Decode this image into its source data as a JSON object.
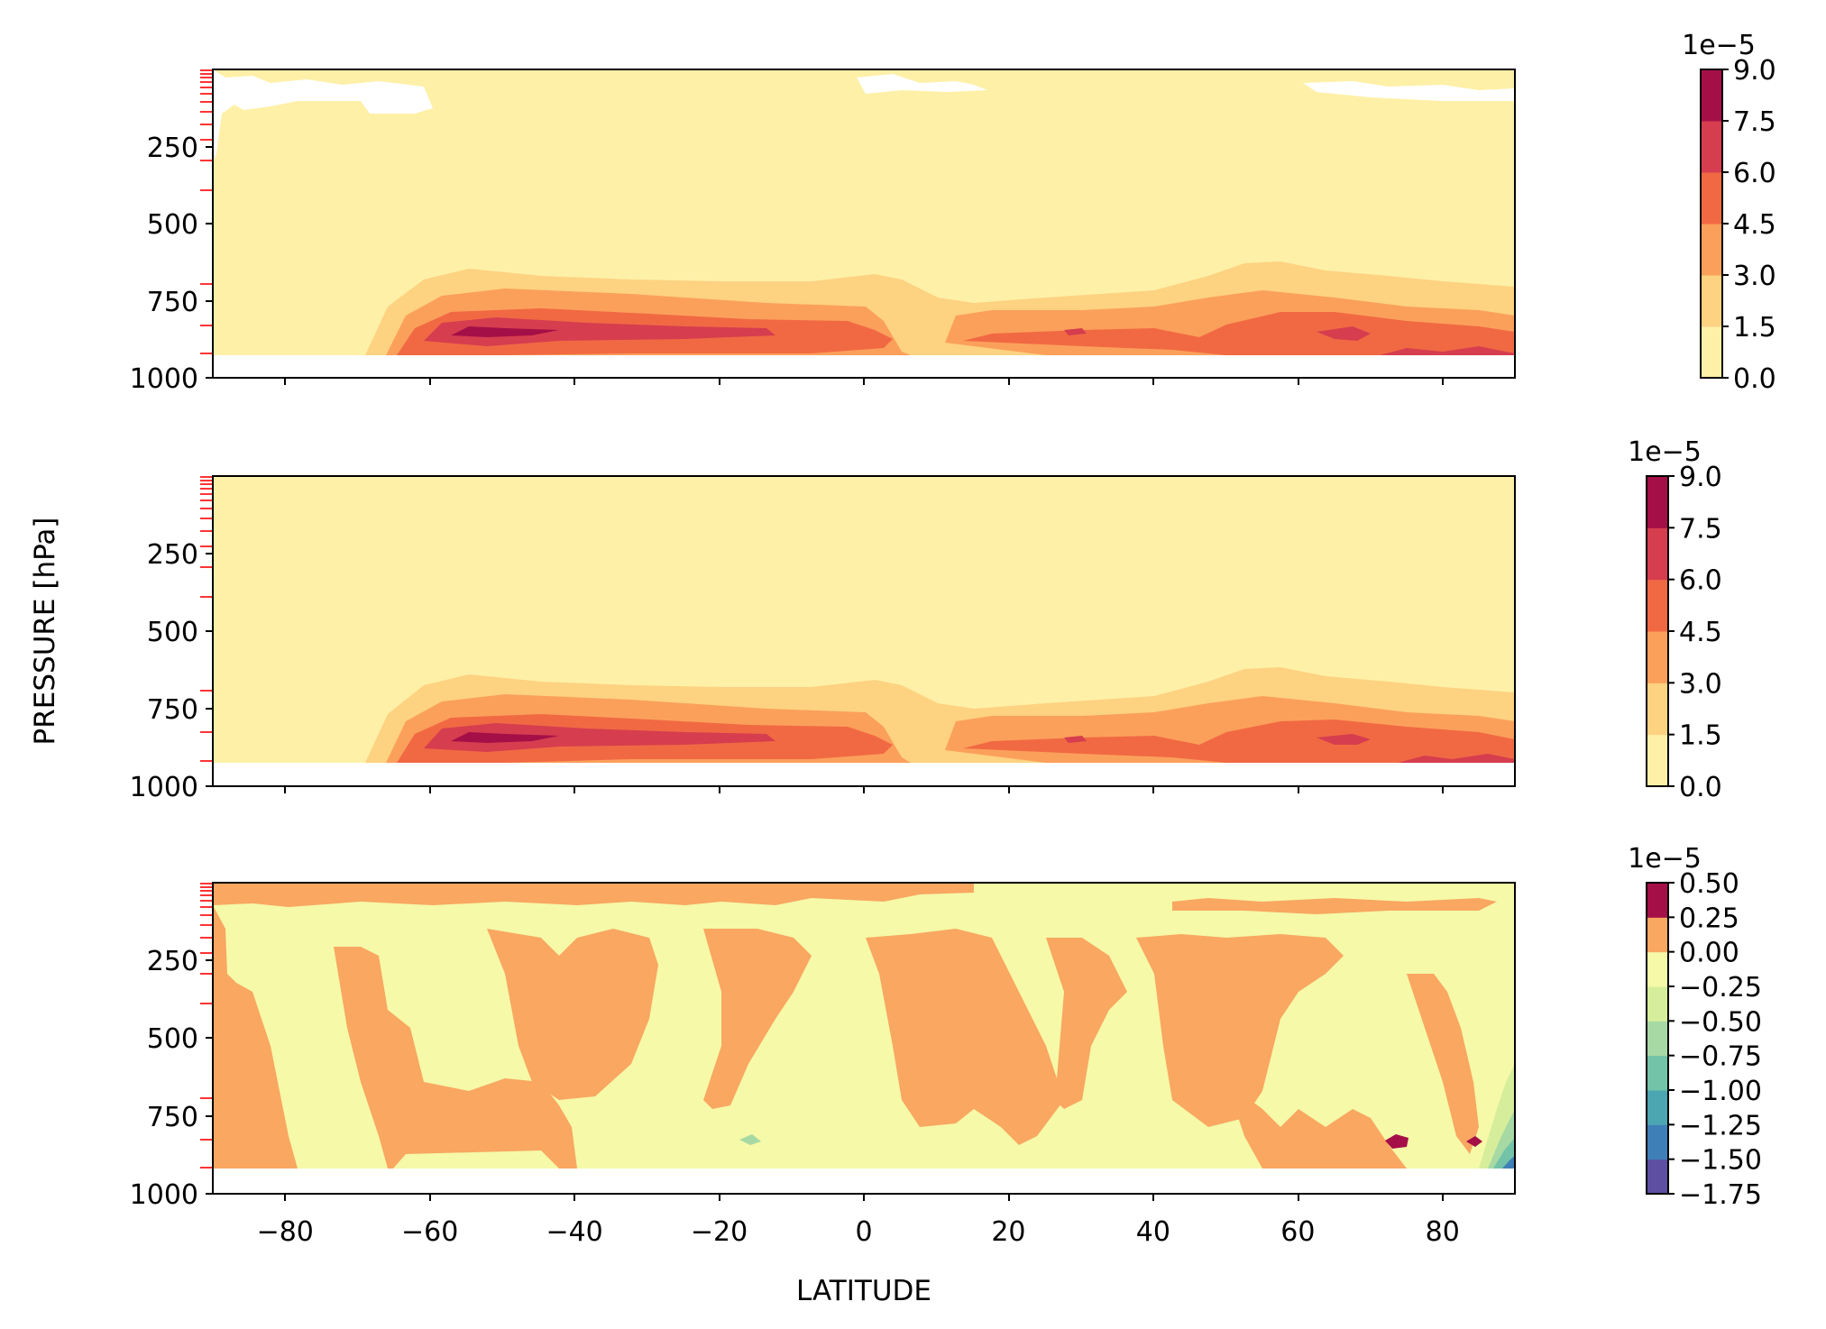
{
  "figure": {
    "ylabel": "PRESSURE [hPa]",
    "xlabel": "LATITUDE"
  },
  "chart_data": [
    {
      "type": "heatmap",
      "subtype": "filled-contour",
      "xlim": [
        -90,
        90
      ],
      "ylim": [
        1000,
        0
      ],
      "xticks": [
        -80,
        -60,
        -40,
        -20,
        0,
        20,
        40,
        60,
        80
      ],
      "yticks": [
        250,
        500,
        750,
        1000
      ],
      "x_ticklabels_visible": false,
      "colorbar": {
        "multiplier": "1e−5",
        "levels": [
          0.0,
          1.5,
          3.0,
          4.5,
          6.0,
          7.5,
          9.0
        ],
        "ticklabels": [
          "0.0",
          "1.5",
          "3.0",
          "4.5",
          "6.0",
          "7.5",
          "9.0"
        ],
        "colors": [
          "#fef0a7",
          "#fdd281",
          "#fba05b",
          "#f16943",
          "#d63d4f",
          "#a50f47"
        ]
      },
      "features": [
        {
          "level": 1,
          "lat_range": [
            -72,
            90
          ],
          "pressure_range": [
            680,
            920
          ]
        },
        {
          "level": 3,
          "lat_range": [
            -62,
            4
          ],
          "pressure_range": [
            790,
            900
          ]
        },
        {
          "level": 5,
          "lat_range": [
            -58,
            -20
          ],
          "pressure_range": [
            840,
            870
          ]
        },
        {
          "level": 3,
          "lat_range": [
            12,
            90
          ],
          "pressure_range": [
            800,
            910
          ]
        }
      ]
    },
    {
      "type": "heatmap",
      "subtype": "filled-contour",
      "xlim": [
        -90,
        90
      ],
      "ylim": [
        1000,
        0
      ],
      "xticks": [
        -80,
        -60,
        -40,
        -20,
        0,
        20,
        40,
        60,
        80
      ],
      "yticks": [
        250,
        500,
        750,
        1000
      ],
      "x_ticklabels_visible": false,
      "colorbar": {
        "multiplier": "1e−5",
        "levels": [
          0.0,
          1.5,
          3.0,
          4.5,
          6.0,
          7.5,
          9.0
        ],
        "ticklabels": [
          "0.0",
          "1.5",
          "3.0",
          "4.5",
          "6.0",
          "7.5",
          "9.0"
        ],
        "colors": [
          "#fef0a7",
          "#fdd281",
          "#fba05b",
          "#f16943",
          "#d63d4f",
          "#a50f47"
        ]
      },
      "features": [
        {
          "level": 1,
          "lat_range": [
            -72,
            90
          ],
          "pressure_range": [
            680,
            920
          ]
        },
        {
          "level": 3,
          "lat_range": [
            -62,
            4
          ],
          "pressure_range": [
            790,
            900
          ]
        },
        {
          "level": 5,
          "lat_range": [
            -58,
            -20
          ],
          "pressure_range": [
            840,
            870
          ]
        },
        {
          "level": 3,
          "lat_range": [
            12,
            90
          ],
          "pressure_range": [
            800,
            910
          ]
        }
      ]
    },
    {
      "type": "heatmap",
      "subtype": "filled-contour",
      "xlim": [
        -90,
        90
      ],
      "ylim": [
        1000,
        0
      ],
      "xticks": [
        -80,
        -60,
        -40,
        -20,
        0,
        20,
        40,
        60,
        80
      ],
      "yticks": [
        250,
        500,
        750,
        1000
      ],
      "x_ticklabels_visible": true,
      "colorbar": {
        "multiplier": "1e−5",
        "levels": [
          -1.75,
          -1.5,
          -1.25,
          -1.0,
          -0.75,
          -0.5,
          -0.25,
          0.0,
          0.25,
          0.5
        ],
        "ticklabels": [
          "−1.75",
          "−1.50",
          "−1.25",
          "−1.00",
          "−0.75",
          "−0.50",
          "−0.25",
          "0.00",
          "0.25",
          "0.50"
        ],
        "colors": [
          "#5e4fa2",
          "#3f7fb8",
          "#4ca6b1",
          "#72c3a7",
          "#a7d9a4",
          "#d6ee9b",
          "#f5f9a8",
          "#f9a761",
          "#a50f47"
        ]
      },
      "features": [
        {
          "level": 7,
          "note": "positive bands",
          "lat_centers": [
            -90,
            -70,
            -55,
            -42,
            -20,
            -5,
            10,
            25,
            45,
            62,
            80
          ]
        },
        {
          "level": 8,
          "lat": [
            74,
            84
          ],
          "pressure": 850
        },
        {
          "level": 2,
          "lat": [
            88,
            90
          ],
          "pressure": 900
        }
      ]
    }
  ]
}
